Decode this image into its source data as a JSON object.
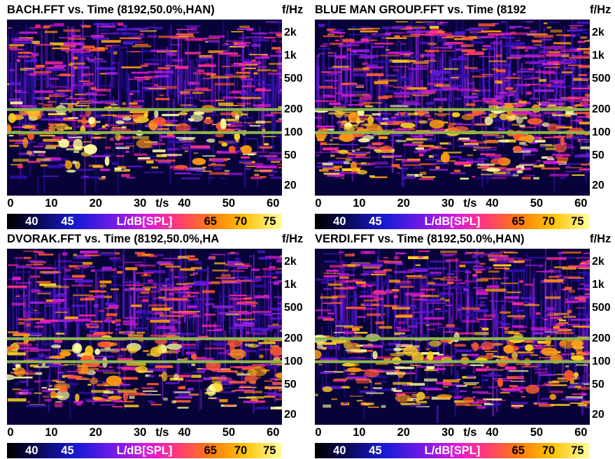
{
  "chart_data": [
    {
      "type": "heatmap",
      "title": "BACH.FFT vs. Time (8192,50.0%,HAN)",
      "ylabel": "f/Hz",
      "xlabel": "t/s",
      "x_ticks": [
        "0",
        "10",
        "20",
        "30",
        "40",
        "50",
        "60"
      ],
      "y_ticks": [
        "2k",
        "1k",
        "500",
        "200",
        "100",
        "50",
        "20"
      ],
      "xlim": [
        0,
        62
      ],
      "ylim": [
        15,
        3000
      ],
      "y_scale": "log",
      "reference_lines_hz": [
        100,
        200
      ],
      "colorbar": {
        "title": "L/dB[SPL]",
        "ticks": [
          "40",
          "45",
          "65",
          "70",
          "75"
        ]
      }
    },
    {
      "type": "heatmap",
      "title": "BLUE MAN GROUP.FFT vs. Time (8192",
      "ylabel": "f/Hz",
      "xlabel": "t/s",
      "x_ticks": [
        "0",
        "10",
        "20",
        "30",
        "40",
        "50",
        "60"
      ],
      "y_ticks": [
        "2k",
        "1k",
        "500",
        "200",
        "100",
        "50",
        "20"
      ],
      "xlim": [
        0,
        62
      ],
      "ylim": [
        15,
        3000
      ],
      "y_scale": "log",
      "reference_lines_hz": [
        100,
        200
      ],
      "colorbar": {
        "title": "L/dB[SPL]",
        "ticks": [
          "40",
          "45",
          "65",
          "70",
          "75"
        ]
      }
    },
    {
      "type": "heatmap",
      "title": "DVORAK.FFT vs. Time (8192,50.0%,HA",
      "ylabel": "f/Hz",
      "xlabel": "t/s",
      "x_ticks": [
        "0",
        "10",
        "20",
        "30",
        "40",
        "50",
        "60"
      ],
      "y_ticks": [
        "2k",
        "1k",
        "500",
        "200",
        "100",
        "50",
        "20"
      ],
      "xlim": [
        0,
        62
      ],
      "ylim": [
        15,
        3000
      ],
      "y_scale": "log",
      "reference_lines_hz": [
        100,
        200
      ],
      "colorbar": {
        "title": "L/dB[SPL]",
        "ticks": [
          "40",
          "45",
          "65",
          "70",
          "75"
        ]
      }
    },
    {
      "type": "heatmap",
      "title": "VERDI.FFT vs. Time (8192,50.0%,HAN)",
      "ylabel": "f/Hz",
      "xlabel": "t/s",
      "x_ticks": [
        "0",
        "10",
        "20",
        "30",
        "40",
        "50",
        "60"
      ],
      "y_ticks": [
        "2k",
        "1k",
        "500",
        "200",
        "100",
        "50",
        "20"
      ],
      "xlim": [
        0,
        62
      ],
      "ylim": [
        15,
        3000
      ],
      "y_scale": "log",
      "reference_lines_hz": [
        100,
        200
      ],
      "colorbar": {
        "title": "L/dB[SPL]",
        "ticks": [
          "40",
          "45",
          "65",
          "70",
          "75"
        ]
      }
    }
  ],
  "colors": {
    "reference_line": "#8fb84a",
    "background": "#070238",
    "colormap": [
      "#000000",
      "#0a0a5a",
      "#1a1ad8",
      "#7a1ae8",
      "#e01ad8",
      "#ff3a78",
      "#ff7a10",
      "#ffc000",
      "#ffffa0"
    ]
  }
}
